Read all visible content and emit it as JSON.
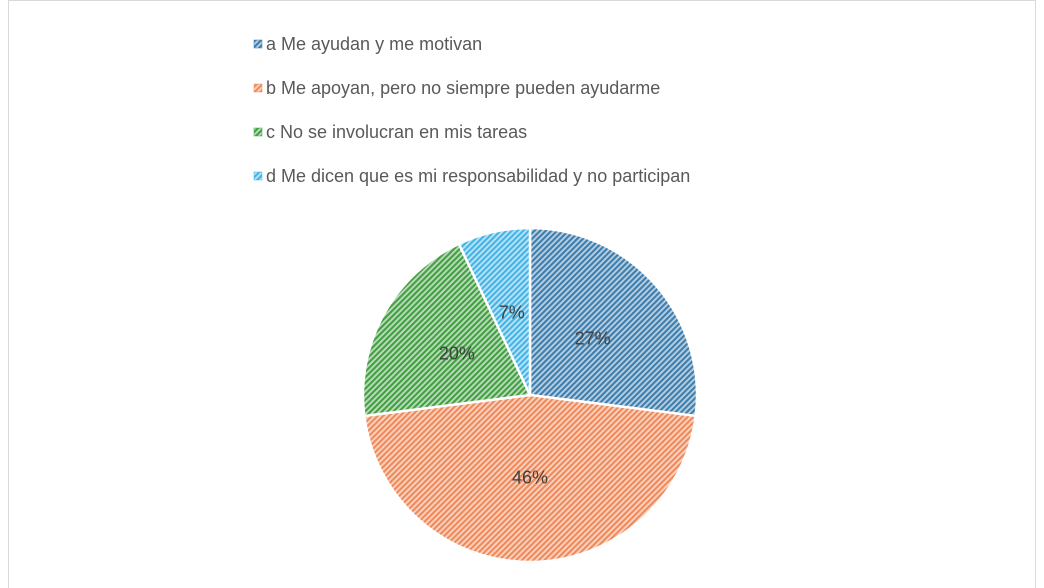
{
  "chart_data": {
    "type": "pie",
    "categories": [
      "a  Me ayudan y me motivan",
      "b  Me apoyan, pero no siempre pueden ayudarme",
      "c  No se involucran en mis tareas",
      "d Me dicen que es mi responsabilidad y no participan"
    ],
    "values": [
      27,
      46,
      20,
      7
    ],
    "value_labels": [
      "27%",
      "46%",
      "20%",
      "7%"
    ],
    "colors": [
      "#3f7fae",
      "#f08a5a",
      "#44a044",
      "#45b4e6"
    ],
    "legend": "top"
  }
}
